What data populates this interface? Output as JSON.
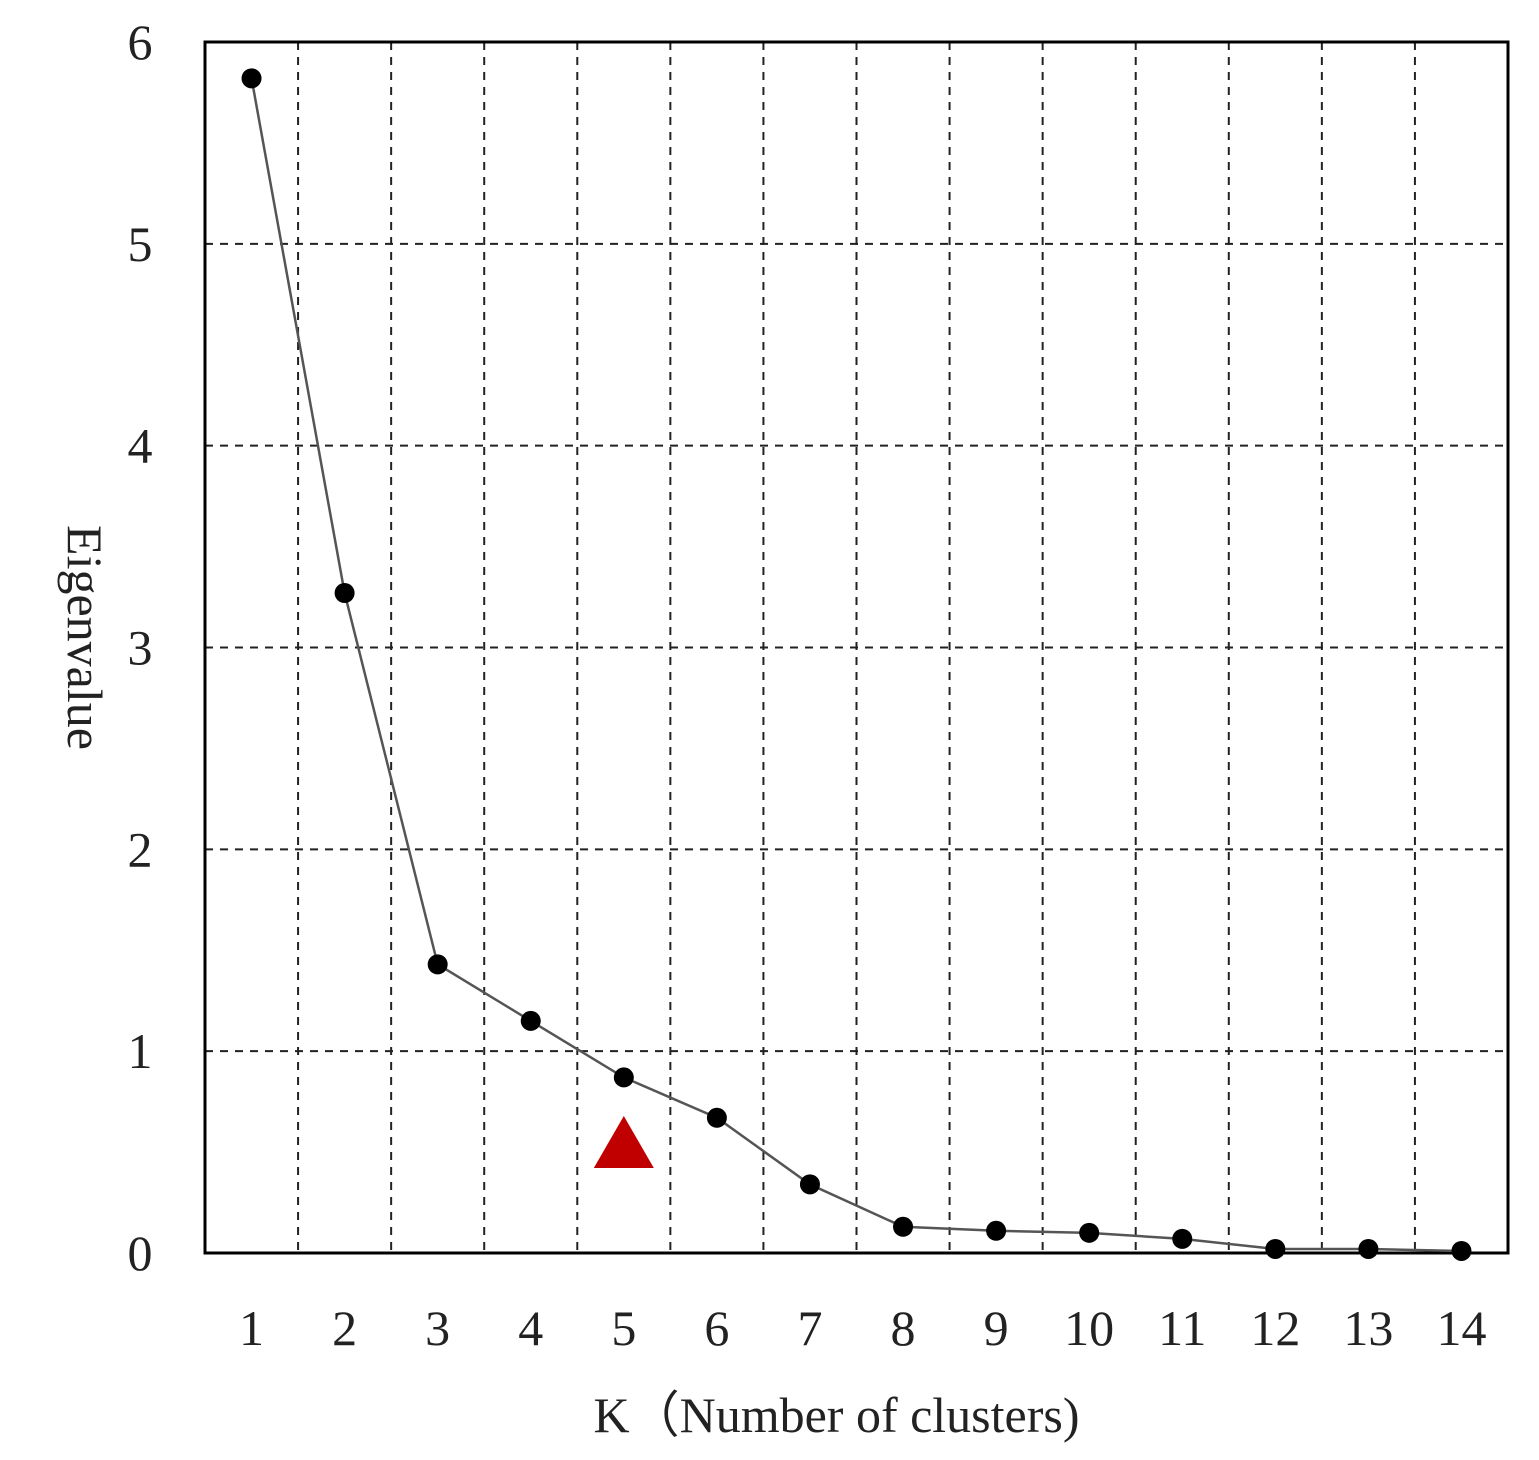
{
  "chart_data": {
    "type": "line",
    "title": "",
    "xlabel": "K（Number of clusters)",
    "ylabel": "Eigenvalue",
    "x": [
      1,
      2,
      3,
      4,
      5,
      6,
      7,
      8,
      9,
      10,
      11,
      12,
      13,
      14
    ],
    "y": [
      5.82,
      3.27,
      1.43,
      1.15,
      0.87,
      0.67,
      0.34,
      0.13,
      0.11,
      0.1,
      0.07,
      0.02,
      0.02,
      0.01
    ],
    "xlim": [
      0.5,
      14.5
    ],
    "ylim": [
      0,
      6
    ],
    "xticks": [
      "1",
      "2",
      "3",
      "4",
      "5",
      "6",
      "7",
      "8",
      "9",
      "10",
      "11",
      "12",
      "13",
      "14"
    ],
    "yticks": [
      "0",
      "1",
      "2",
      "3",
      "4",
      "5",
      "6"
    ],
    "grid": true,
    "grid_style": "dashed",
    "line_color": "#555555",
    "marker_color": "#000000",
    "annotation": {
      "type": "triangle-marker",
      "x": 5,
      "y": 0.55,
      "color": "#c00000"
    }
  }
}
